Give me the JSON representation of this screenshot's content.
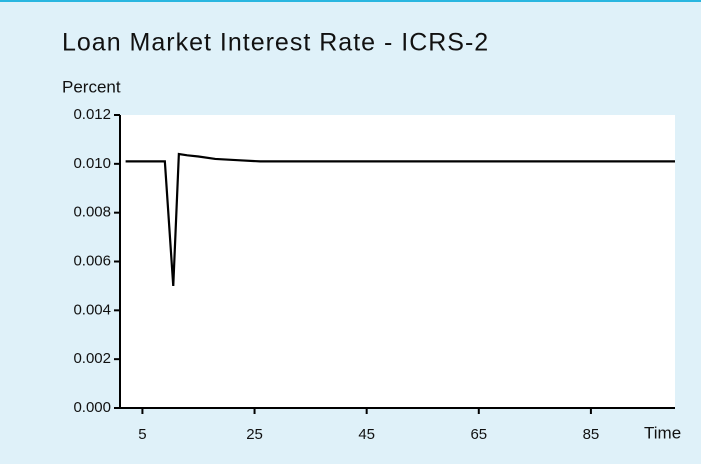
{
  "chart_data": {
    "type": "line",
    "title": "Loan Market Interest Rate - ICRS-2",
    "y_label": "Percent",
    "x_label": "Time",
    "x": [
      2,
      9,
      10.5,
      11.5,
      13,
      15,
      18,
      22,
      26,
      35,
      50,
      70,
      100
    ],
    "series": [
      {
        "name": "Loan Market Interest Rate",
        "color": "#000000",
        "values": [
          0.0101,
          0.0101,
          0.005,
          0.0104,
          0.01035,
          0.0103,
          0.0102,
          0.01015,
          0.0101,
          0.0101,
          0.0101,
          0.0101,
          0.0101
        ]
      }
    ],
    "xlim": [
      1,
      100
    ],
    "xticks": [
      5,
      25,
      45,
      65,
      85
    ],
    "ylim": [
      0,
      0.012
    ],
    "yticks": [
      {
        "value": 0,
        "label": "0.000"
      },
      {
        "value": 0.002,
        "label": "0.002"
      },
      {
        "value": 0.004,
        "label": "0.004"
      },
      {
        "value": 0.006,
        "label": "0.006"
      },
      {
        "value": 0.008,
        "label": "0.008"
      },
      {
        "value": 0.01,
        "label": "0.010"
      },
      {
        "value": 0.012,
        "label": "0.012"
      }
    ]
  }
}
